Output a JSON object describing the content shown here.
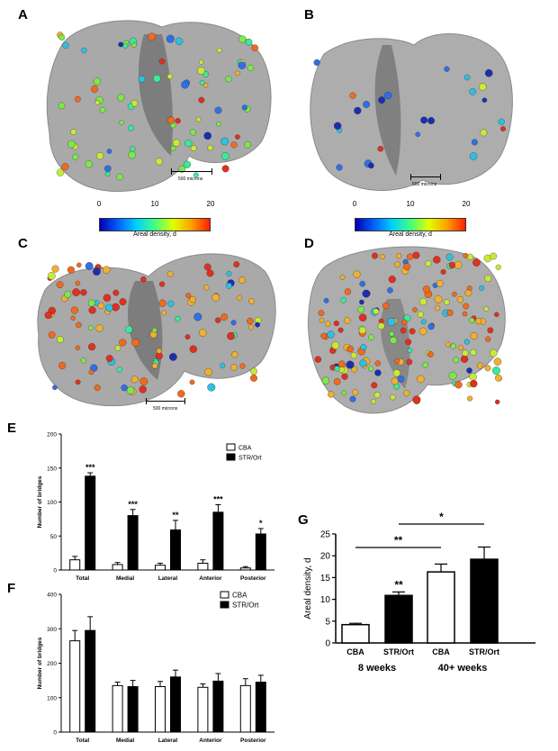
{
  "panels": {
    "A": {
      "letter": "A",
      "scale": "500 microns",
      "colorbar": {
        "ticks": [
          "0",
          "10",
          "20"
        ],
        "label": "Areal density, d"
      }
    },
    "B": {
      "letter": "B",
      "scale": "500 microns",
      "colorbar": {
        "ticks": [
          "0",
          "10",
          "20"
        ],
        "label": "Areal density, d"
      }
    },
    "C": {
      "letter": "C",
      "scale": "500 microns"
    },
    "D": {
      "letter": "D"
    }
  },
  "colors": {
    "bone": "#a8a8a8",
    "cba": "#ffffff",
    "str": "#000000"
  },
  "chart_data": [
    {
      "panel": "E",
      "type": "bar",
      "categories": [
        "Total",
        "Medial",
        "Lateral",
        "Anterior",
        "Posterior"
      ],
      "series": [
        {
          "name": "CBA",
          "values": [
            15,
            8,
            7,
            10,
            3
          ],
          "errors": [
            5,
            3,
            3,
            5,
            2
          ]
        },
        {
          "name": "STR/Ort",
          "values": [
            138,
            80,
            59,
            85,
            53
          ],
          "errors": [
            5,
            9,
            14,
            11,
            8
          ]
        }
      ],
      "significance": [
        "***",
        "***",
        "**",
        "***",
        "*"
      ],
      "ylabel": "Number of bridges",
      "ylim": [
        0,
        200
      ],
      "yticks": [
        0,
        50,
        100,
        150,
        200
      ]
    },
    {
      "panel": "F",
      "type": "bar",
      "categories": [
        "Total",
        "Medial",
        "Lateral",
        "Anterior",
        "Posterior"
      ],
      "series": [
        {
          "name": "CBA",
          "values": [
            265,
            135,
            132,
            130,
            135
          ],
          "errors": [
            30,
            10,
            15,
            10,
            20
          ]
        },
        {
          "name": "STR/Ort",
          "values": [
            295,
            132,
            160,
            148,
            145
          ],
          "errors": [
            40,
            18,
            20,
            22,
            20
          ]
        }
      ],
      "ylabel": "Number of bridges",
      "ylim": [
        0,
        400
      ],
      "yticks": [
        0,
        100,
        200,
        300,
        400
      ]
    },
    {
      "panel": "G",
      "type": "bar",
      "categories": [
        "CBA",
        "STR/Ort",
        "CBA",
        "STR/Ort"
      ],
      "groups": [
        "8 weeks",
        "40+ weeks"
      ],
      "values": [
        4.2,
        10.9,
        16.3,
        19.2
      ],
      "errors": [
        0.3,
        0.8,
        1.8,
        2.8
      ],
      "fills": [
        "white",
        "black",
        "white",
        "black"
      ],
      "bar_annotation": {
        "index": 1,
        "text": "**"
      },
      "brackets": [
        {
          "from": 0,
          "to": 2,
          "text": "**"
        },
        {
          "from": 1,
          "to": 3,
          "text": "*"
        }
      ],
      "ylabel": "Areal density, d",
      "ylim": [
        0,
        25
      ],
      "yticks": [
        0,
        5,
        10,
        15,
        20,
        25
      ]
    }
  ]
}
